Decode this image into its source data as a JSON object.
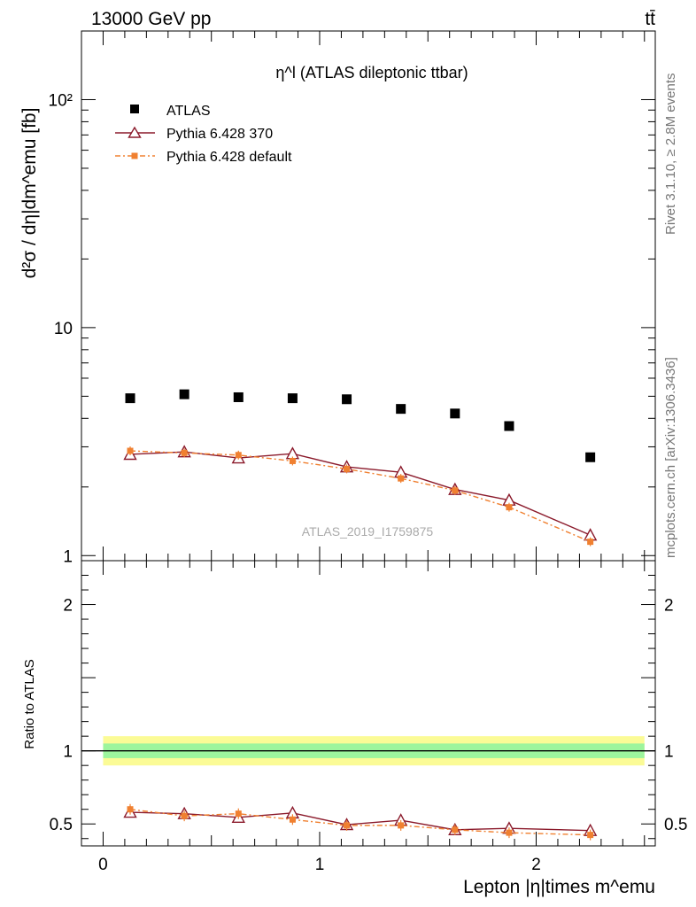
{
  "header": {
    "left": "13000 GeV pp",
    "right": "tt̄"
  },
  "side": {
    "rivet": "Rivet 3.1.10, ≥ 2.8M events",
    "mcplots": "mcplots.cern.ch [arXiv:1306.3436]"
  },
  "watermark": "ATLAS_2019_I1759875",
  "chart_data": [
    {
      "type": "scatter",
      "title": "η^l (ATLAS dileptonic ttbar)",
      "ylabel": "d²σ / dη|dm^emu [fb]",
      "xlabel": "",
      "yscale": "log",
      "ylim": [
        0.95,
        200
      ],
      "xlim": [
        -0.1,
        2.55
      ],
      "ytick_labels": [
        "1",
        "10",
        "10²"
      ],
      "legend_position": "top-left",
      "x": [
        0.125,
        0.375,
        0.625,
        0.875,
        1.125,
        1.375,
        1.625,
        1.875,
        2.25
      ],
      "series": [
        {
          "name": "ATLAS",
          "color": "#000000",
          "marker": "square",
          "values": [
            4.9,
            5.1,
            4.95,
            4.9,
            4.85,
            4.4,
            4.2,
            3.7,
            2.7
          ]
        },
        {
          "name": "Pythia 6.428 370",
          "color": "#8b1a2b",
          "marker": "open-triangle",
          "values": [
            2.78,
            2.85,
            2.68,
            2.8,
            2.45,
            2.32,
            1.95,
            1.75,
            1.23
          ]
        },
        {
          "name": "Pythia 6.428 default",
          "color": "#f08030",
          "marker": "square-small",
          "values": [
            2.88,
            2.82,
            2.76,
            2.6,
            2.4,
            2.18,
            1.93,
            1.63,
            1.15
          ]
        }
      ]
    },
    {
      "type": "scatter",
      "title": "",
      "ylabel": "Ratio to ATLAS",
      "xlabel": "Lepton |η|times m^emu",
      "ylim": [
        0.35,
        2.3
      ],
      "xlim": [
        -0.1,
        2.55
      ],
      "ytick_labels": [
        "0.5",
        "1",
        "2"
      ],
      "xtick_labels": [
        "0",
        "1",
        "2"
      ],
      "reference": 1,
      "band_inner": [
        0.95,
        1.05
      ],
      "band_outer": [
        0.9,
        1.1
      ],
      "x": [
        0.125,
        0.375,
        0.625,
        0.875,
        1.125,
        1.375,
        1.625,
        1.875,
        2.25
      ],
      "series": [
        {
          "name": "Pythia 6.428 370",
          "color": "#8b1a2b",
          "marker": "open-triangle",
          "values": [
            0.58,
            0.57,
            0.545,
            0.575,
            0.495,
            0.525,
            0.46,
            0.47,
            0.455
          ]
        },
        {
          "name": "Pythia 6.428 default",
          "color": "#f08030",
          "marker": "square-small",
          "values": [
            0.6,
            0.555,
            0.57,
            0.53,
            0.49,
            0.49,
            0.46,
            0.44,
            0.425
          ]
        }
      ]
    }
  ]
}
